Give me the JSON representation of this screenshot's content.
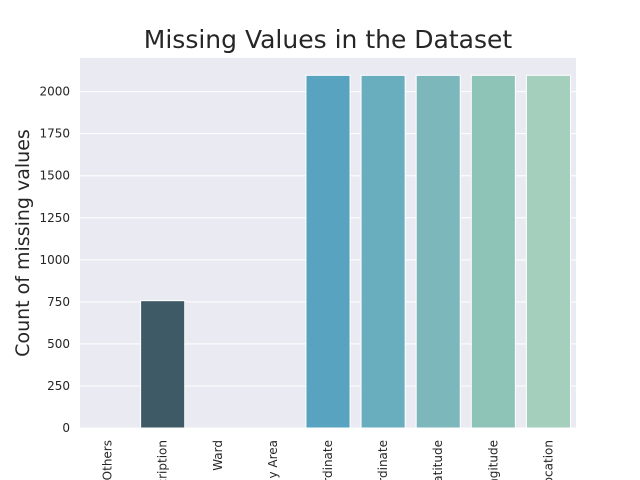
{
  "chart_data": {
    "type": "bar",
    "title": "Missing Values in the Dataset",
    "xlabel": "",
    "ylabel": "Count of missing values",
    "categories": [
      "Others",
      "cription",
      "Ward",
      "y Area",
      "rdinate",
      "rdinate",
      "atitude",
      "ngitude",
      "ocation"
    ],
    "values": [
      0,
      757,
      0,
      0,
      2097,
      2097,
      2097,
      2097,
      2097
    ],
    "ylim": [
      0,
      2200
    ],
    "yticks": [
      "0",
      "250",
      "500",
      "750",
      "1000",
      "1250",
      "1500",
      "1750",
      "2000"
    ],
    "grid": true,
    "legend": "none",
    "colors": [
      "#2f4b7c",
      "#3d5a66",
      "#45788d",
      "#4c8fab",
      "#57a3c0",
      "#69aebe",
      "#7cb7bb",
      "#8ec3b8",
      "#a3cfbc"
    ],
    "background": "#eaeaf2"
  }
}
